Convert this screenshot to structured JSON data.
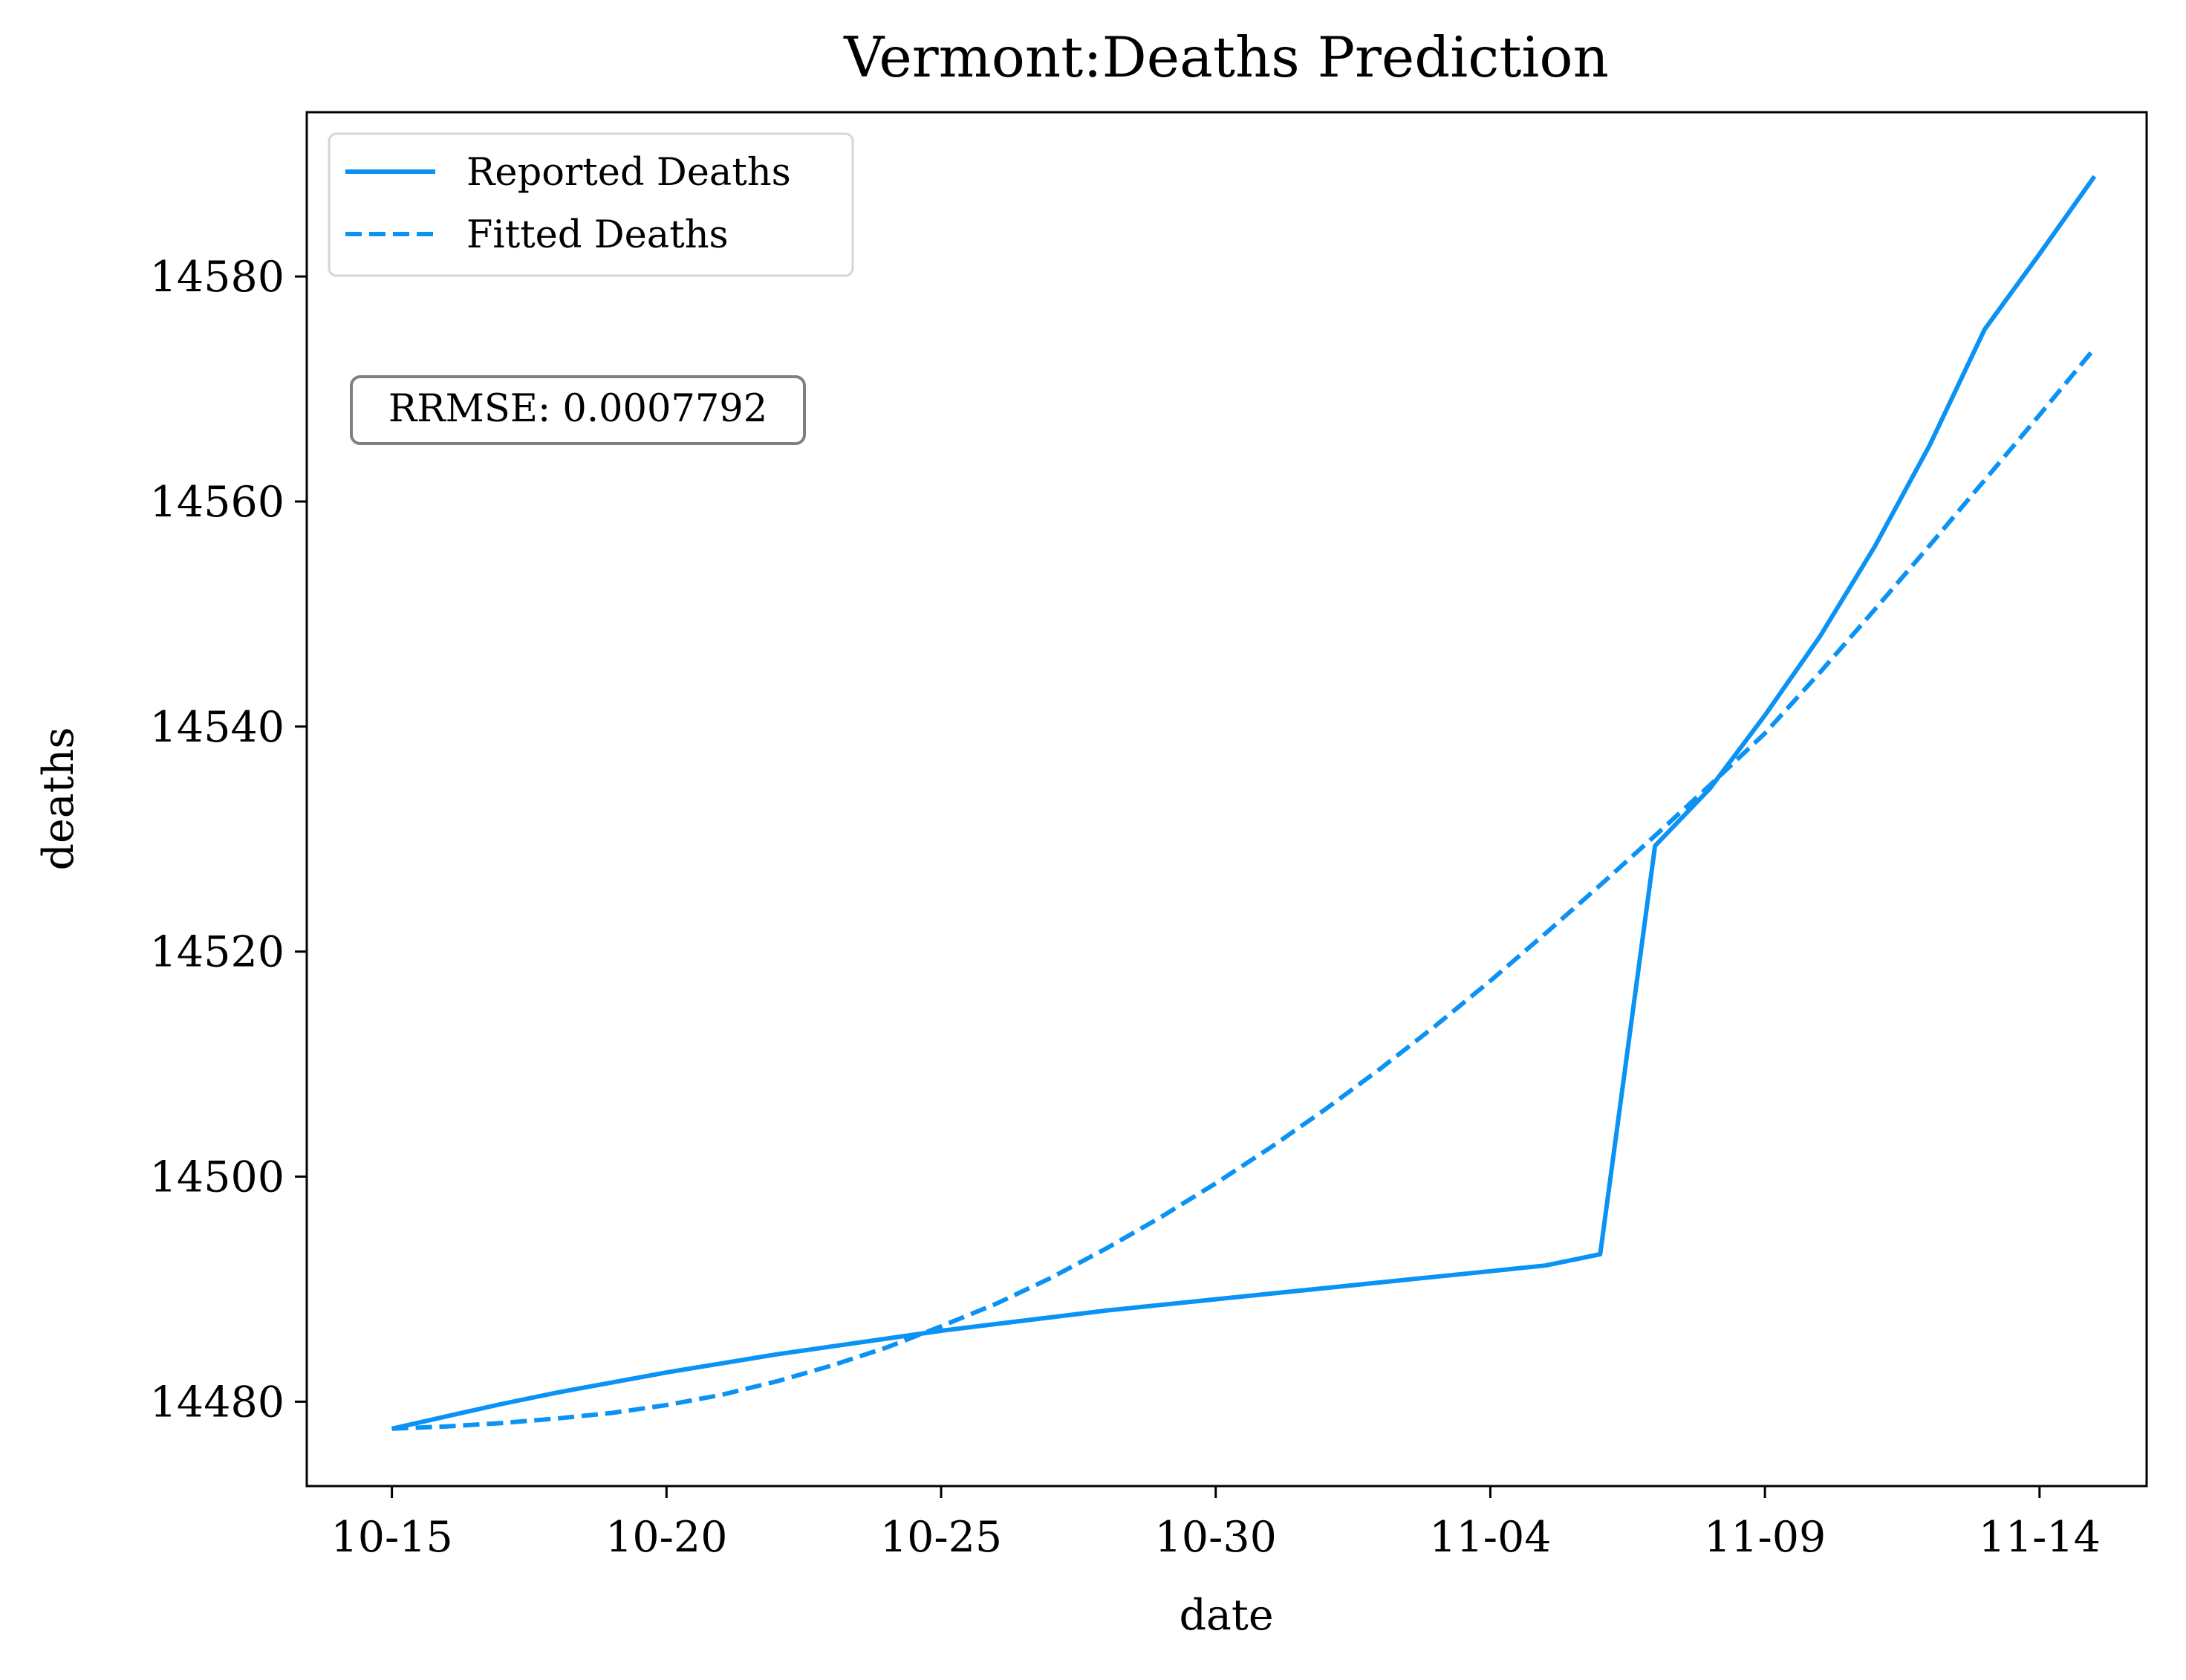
{
  "chart_data": {
    "type": "line",
    "title": "Vermont:Deaths Prediction",
    "xlabel": "date",
    "ylabel": "deaths",
    "x_tick_labels": [
      "10-15",
      "10-20",
      "10-25",
      "10-30",
      "11-04",
      "11-09",
      "11-14"
    ],
    "x_tick_days": [
      0,
      5,
      10,
      15,
      20,
      25,
      30
    ],
    "y_ticks": [
      14480,
      14500,
      14520,
      14540,
      14560,
      14580
    ],
    "y_tick_labels": [
      "14480",
      "14500",
      "14520",
      "14540",
      "14560",
      "14580"
    ],
    "xlim": [
      -1.55,
      31.95
    ],
    "ylim": [
      14472.5,
      14594.6
    ],
    "grid": false,
    "legend_position": "top-left",
    "annotation": "RRMSE: 0.0007792",
    "series": [
      {
        "name": "Reported Deaths",
        "style": "solid",
        "color": "#0a92f5",
        "x": [
          "10-15",
          "10-16",
          "10-17",
          "10-18",
          "10-19",
          "10-20",
          "10-21",
          "10-22",
          "10-23",
          "10-24",
          "10-25",
          "10-26",
          "10-27",
          "10-28",
          "10-29",
          "10-30",
          "10-31",
          "11-01",
          "11-02",
          "11-03",
          "11-04",
          "11-05",
          "11-06",
          "11-07",
          "11-08",
          "11-09",
          "11-10",
          "11-11",
          "11-12",
          "11-13",
          "11-14",
          "11-15"
        ],
        "values": [
          14477.6,
          14478.7,
          14479.8,
          14480.8,
          14481.7,
          14482.6,
          14483.4,
          14484.2,
          14484.9,
          14485.6,
          14486.3,
          14486.9,
          14487.5,
          14488.1,
          14488.6,
          14489.1,
          14489.6,
          14490.1,
          14490.6,
          14491.1,
          14491.6,
          14492.1,
          14493.1,
          14529.4,
          14534.5,
          14541.0,
          14548.0,
          14556.0,
          14565.0,
          14575.3,
          14582.0,
          14588.9
        ]
      },
      {
        "name": "Fitted Deaths",
        "style": "dashed",
        "color": "#0a92f5",
        "x": [
          "10-15",
          "10-16",
          "10-17",
          "10-18",
          "10-19",
          "10-20",
          "10-21",
          "10-22",
          "10-23",
          "10-24",
          "10-25",
          "10-26",
          "10-27",
          "10-28",
          "10-29",
          "10-30",
          "10-31",
          "11-01",
          "11-02",
          "11-03",
          "11-04",
          "11-05",
          "11-06",
          "11-07",
          "11-08",
          "11-09",
          "11-10",
          "11-11",
          "11-12",
          "11-13",
          "11-14",
          "11-15"
        ],
        "values": [
          14477.6,
          14477.8,
          14478.1,
          14478.5,
          14479.0,
          14479.7,
          14480.6,
          14481.8,
          14483.2,
          14484.8,
          14486.7,
          14488.7,
          14491.0,
          14493.6,
          14496.4,
          14499.4,
          14502.6,
          14506.0,
          14509.6,
          14513.4,
          14517.4,
          14521.6,
          14525.9,
          14530.3,
          14534.8,
          14539.4,
          14544.8,
          14550.4,
          14556.1,
          14561.9,
          14567.7,
          14573.6
        ]
      }
    ]
  }
}
